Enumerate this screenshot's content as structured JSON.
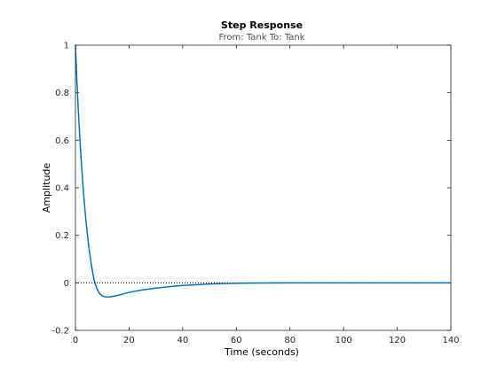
{
  "chart_data": {
    "type": "line",
    "title": "Step Response",
    "subtitle": "From: Tank  To: Tank",
    "xlabel": "Time (seconds)",
    "ylabel": "Amplitude",
    "xlim": [
      0,
      140
    ],
    "ylim": [
      -0.2,
      1
    ],
    "x_ticks": [
      0,
      20,
      40,
      60,
      80,
      100,
      120,
      140
    ],
    "y_ticks": [
      -0.2,
      0,
      0.2,
      0.4,
      0.6,
      0.8,
      1
    ],
    "grid": false,
    "steady_state_reference": 0,
    "series": [
      {
        "color": "#0072bd",
        "x": [
          0,
          0.5,
          1,
          2,
          3,
          4,
          5,
          6,
          7,
          8,
          9,
          10,
          11,
          12,
          13,
          14,
          16,
          18,
          20,
          25,
          30,
          35,
          40,
          45,
          50,
          55,
          60,
          65,
          70,
          80,
          90,
          100,
          110,
          120,
          130,
          140
        ],
        "y": [
          1.0,
          0.86,
          0.74,
          0.54,
          0.38,
          0.25,
          0.15,
          0.07,
          0.01,
          -0.025,
          -0.045,
          -0.055,
          -0.059,
          -0.06,
          -0.059,
          -0.057,
          -0.052,
          -0.046,
          -0.04,
          -0.03,
          -0.022,
          -0.016,
          -0.011,
          -0.008,
          -0.005,
          -0.003,
          -0.002,
          -0.001,
          -0.0005,
          0,
          0,
          0,
          0,
          0,
          0,
          0
        ]
      }
    ]
  }
}
